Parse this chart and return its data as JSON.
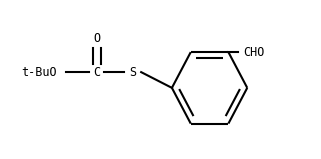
{
  "bg_color": "#ffffff",
  "line_color": "#000000",
  "text_color": "#000000",
  "label_tBuO": "t-BuO",
  "label_C": "C",
  "label_S": "S",
  "label_O": "O",
  "label_CHO": "CHO",
  "figsize": [
    3.21,
    1.59
  ],
  "dpi": 100,
  "font_family": "monospace",
  "font_size": 8.5,
  "line_width": 1.5
}
